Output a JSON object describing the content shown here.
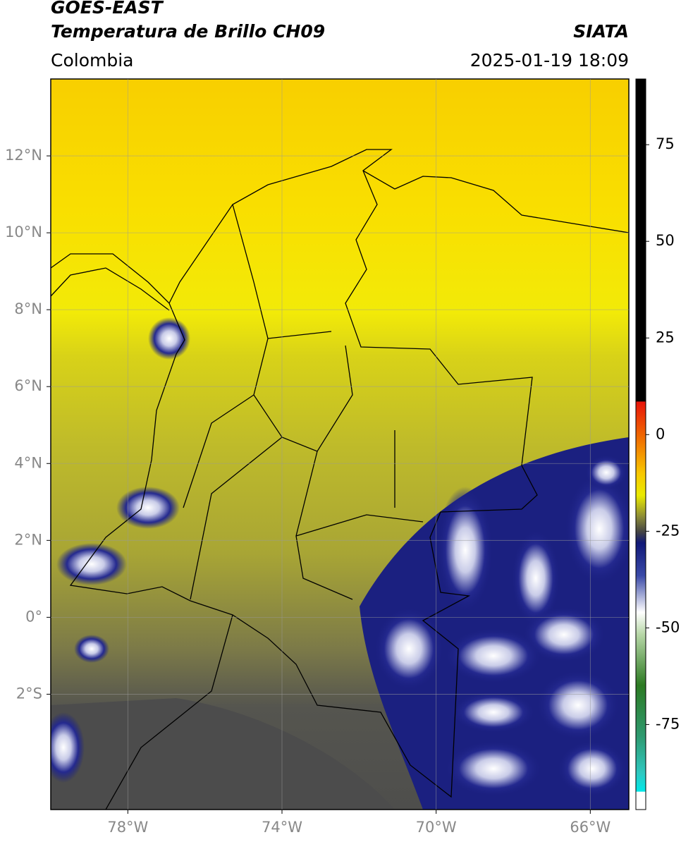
{
  "header": {
    "title": "GOES-EAST",
    "subtitle": "Temperatura de Brillo CH09",
    "source": "SIATA",
    "region": "Colombia",
    "datetime": "2025-01-19 18:09"
  },
  "map": {
    "xlim": [
      -80,
      -65
    ],
    "ylim": [
      -5,
      14
    ],
    "xticks": [
      {
        "value": -78,
        "label": "78°W"
      },
      {
        "value": -74,
        "label": "74°W"
      },
      {
        "value": -70,
        "label": "70°W"
      },
      {
        "value": -66,
        "label": "66°W"
      }
    ],
    "yticks": [
      {
        "value": 12,
        "label": "12°N"
      },
      {
        "value": 10,
        "label": "10°N"
      },
      {
        "value": 8,
        "label": "8°N"
      },
      {
        "value": 6,
        "label": "6°N"
      },
      {
        "value": 4,
        "label": "4°N"
      },
      {
        "value": 2,
        "label": "2°N"
      },
      {
        "value": 0,
        "label": "0°"
      },
      {
        "value": -2,
        "label": "2°S"
      }
    ],
    "grid": true
  },
  "colorbar": {
    "lim": [
      -97,
      92
    ],
    "ticks": [
      75,
      50,
      25,
      0,
      -25,
      -50,
      -75
    ]
  }
}
